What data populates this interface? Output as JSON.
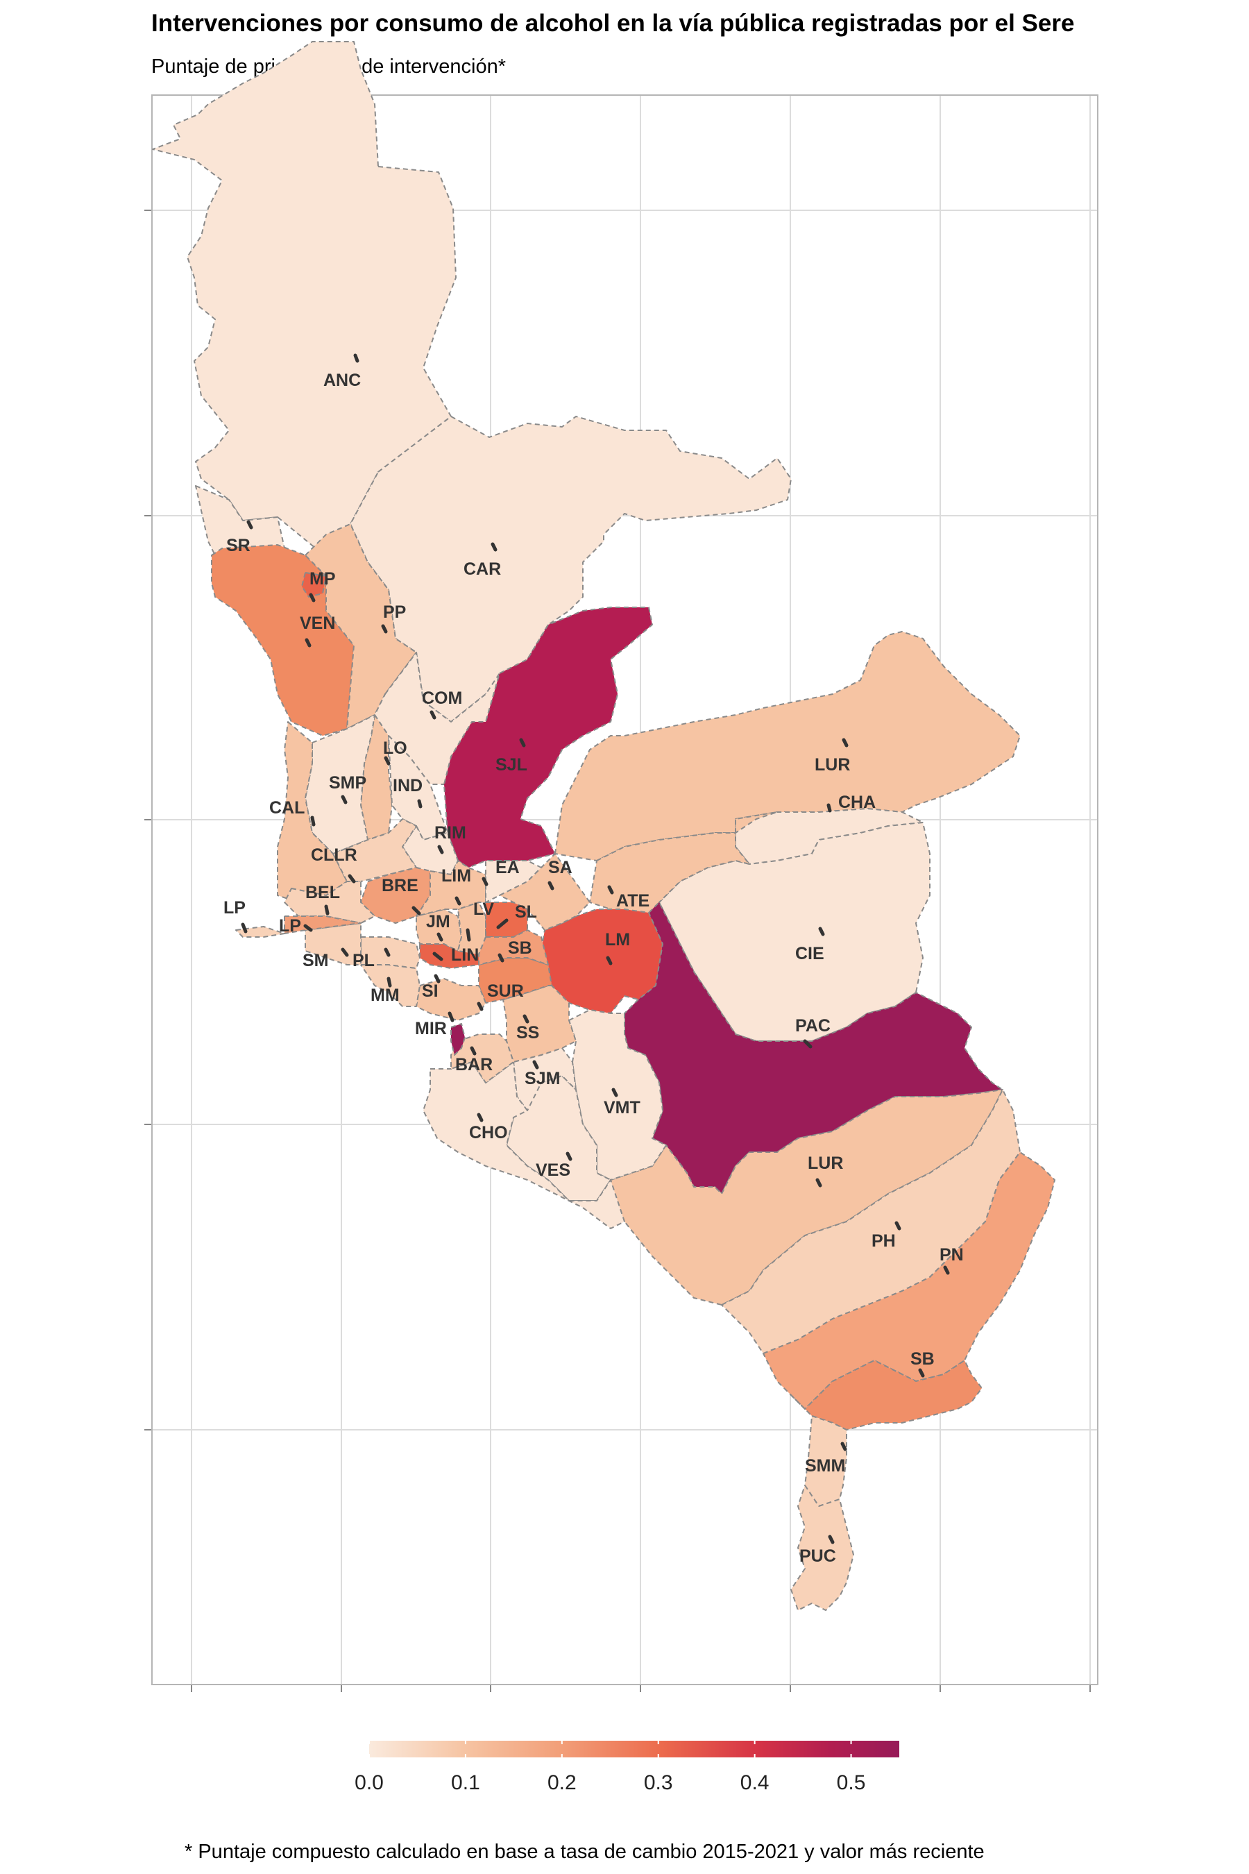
{
  "title": "Intervenciones por consumo de alcohol en la vía pública registradas por el Sere",
  "subtitle": "Puntaje de priorización de intervención*",
  "caption": "* Puntaje compuesto calculado en base a tasa de cambio 2015-2021 y valor más reciente",
  "legend": {
    "ticks": [
      "0.0",
      "0.1",
      "0.2",
      "0.3",
      "0.4",
      "0.5"
    ],
    "range": [
      0,
      0.55
    ],
    "colors": [
      "#faeadd",
      "#f6c4a3",
      "#f29f79",
      "#ec6b4d",
      "#d63346",
      "#b21e50",
      "#971a58"
    ]
  },
  "districts": [
    {
      "code": "ANC",
      "score": 0.02
    },
    {
      "code": "SR",
      "score": 0.03
    },
    {
      "code": "CAR",
      "score": 0.03
    },
    {
      "code": "MP",
      "score": 0.28
    },
    {
      "code": "VEN",
      "score": 0.26
    },
    {
      "code": "PP",
      "score": 0.12
    },
    {
      "code": "COM",
      "score": 0.04
    },
    {
      "code": "SJL",
      "score": 0.48
    },
    {
      "code": "LO",
      "score": 0.14
    },
    {
      "code": "IND",
      "score": 0.07
    },
    {
      "code": "SMP",
      "score": 0.05
    },
    {
      "code": "CAL",
      "score": 0.13
    },
    {
      "code": "RIM",
      "score": 0.04
    },
    {
      "code": "CLLR",
      "score": 0.04
    },
    {
      "code": "LUR",
      "score": 0.14
    },
    {
      "code": "CHA",
      "score": 0.03
    },
    {
      "code": "EA",
      "score": 0.05
    },
    {
      "code": "SA",
      "score": 0.16
    },
    {
      "code": "LIM",
      "score": 0.17
    },
    {
      "code": "BEL",
      "score": 0.12
    },
    {
      "code": "BRE",
      "score": 0.22
    },
    {
      "code": "LP",
      "score": 0.08
    },
    {
      "code": "JM",
      "score": 0.18
    },
    {
      "code": "LV",
      "score": 0.16
    },
    {
      "code": "SL",
      "score": 0.28
    },
    {
      "code": "ATE",
      "score": 0.12
    },
    {
      "code": "LM",
      "score": 0.36
    },
    {
      "code": "CIE",
      "score": 0.03
    },
    {
      "code": "SM",
      "score": 0.06
    },
    {
      "code": "PL",
      "score": 0.09
    },
    {
      "code": "LIN",
      "score": 0.35
    },
    {
      "code": "SB",
      "score": 0.25
    },
    {
      "code": "MM",
      "score": 0.09
    },
    {
      "code": "SI",
      "score": 0.12
    },
    {
      "code": "SUR",
      "score": 0.22
    },
    {
      "code": "PAC",
      "score": 0.5
    },
    {
      "code": "MIR",
      "score": 0.5
    },
    {
      "code": "SS",
      "score": 0.12
    },
    {
      "code": "BAR",
      "score": 0.1
    },
    {
      "code": "SJM",
      "score": 0.06
    },
    {
      "code": "VMT",
      "score": 0.03
    },
    {
      "code": "CHO",
      "score": 0.04
    },
    {
      "code": "VES",
      "score": 0.05
    },
    {
      "code": "PH",
      "score": 0.12
    },
    {
      "code": "PN",
      "score": 0.2
    },
    {
      "code": "SMM",
      "score": 0.08
    },
    {
      "code": "PUC",
      "score": 0.07
    }
  ]
}
